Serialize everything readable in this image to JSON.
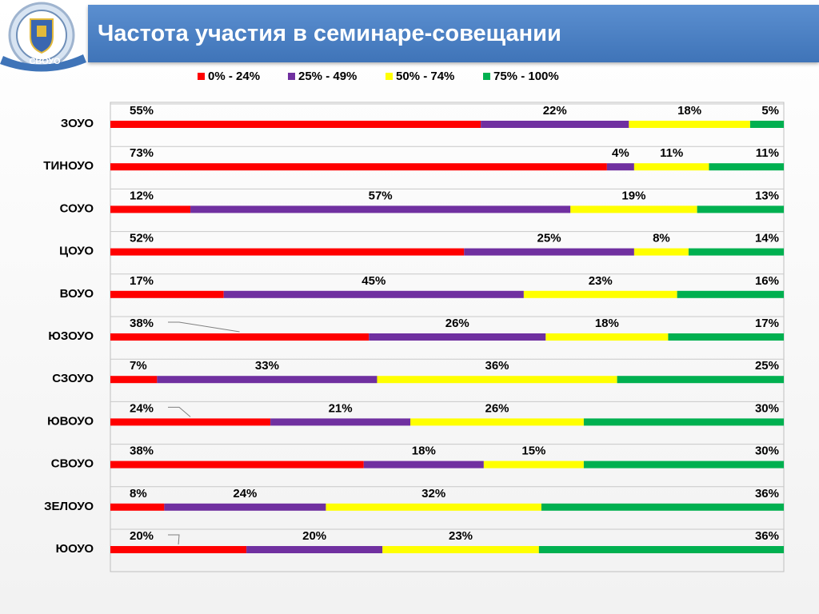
{
  "header": {
    "title": "Частота участия в семинаре-совещании",
    "logo_text": "СВОУО"
  },
  "colors": {
    "series": [
      "#ff0000",
      "#7030a0",
      "#ffff00",
      "#00b050"
    ],
    "title_band": "#4f81bd"
  },
  "chart_data": {
    "type": "bar",
    "stacked": true,
    "orientation": "horizontal",
    "title": "",
    "xlabel": "",
    "ylabel": "",
    "xlim": [
      0,
      100
    ],
    "legend_position": "top",
    "grid": true,
    "categories": [
      "ЗОУО",
      "ТИНОУО",
      "СОУО",
      "ЦОУО",
      "ВОУО",
      "ЮЗОУО",
      "СЗОУО",
      "ЮВОУО",
      "СВОУО",
      "ЗЕЛОУО",
      "ЮОУО"
    ],
    "series": [
      {
        "name": "0% - 24%",
        "values": [
          55,
          73,
          12,
          52,
          17,
          38,
          7,
          24,
          38,
          8,
          20
        ]
      },
      {
        "name": "25% - 49%",
        "values": [
          22,
          4,
          57,
          25,
          45,
          26,
          33,
          21,
          18,
          24,
          20
        ]
      },
      {
        "name": "50% - 74%",
        "values": [
          18,
          11,
          19,
          8,
          23,
          18,
          36,
          26,
          15,
          32,
          23
        ]
      },
      {
        "name": "75% - 100%",
        "values": [
          5,
          11,
          13,
          14,
          16,
          17,
          25,
          30,
          30,
          36,
          36
        ]
      }
    ],
    "data_labels": [
      [
        "55%",
        "22%",
        "18%",
        "5%"
      ],
      [
        "73%",
        "4%",
        "11%",
        "11%"
      ],
      [
        "12%",
        "57%",
        "19%",
        "13%"
      ],
      [
        "52%",
        "25%",
        "8%",
        "14%"
      ],
      [
        "17%",
        "45%",
        "23%",
        "16%"
      ],
      [
        "38%",
        "26%",
        "18%",
        "17%"
      ],
      [
        "7%",
        "33%",
        "36%",
        "25%"
      ],
      [
        "24%",
        "21%",
        "26%",
        "30%"
      ],
      [
        "38%",
        "18%",
        "15%",
        "30%"
      ],
      [
        "8%",
        "24%",
        "32%",
        "36%"
      ],
      [
        "20%",
        "20%",
        "23%",
        "36%"
      ]
    ]
  }
}
